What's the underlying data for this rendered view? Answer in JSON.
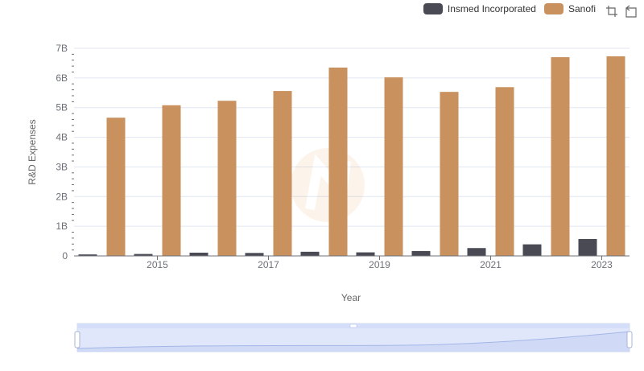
{
  "legend": {
    "items": [
      {
        "label": "Insmed Incorporated",
        "color": "#4a4a55"
      },
      {
        "label": "Sanofi",
        "color": "#c8915e"
      }
    ]
  },
  "toolbox": {
    "zoom_icon": "zoom-icon",
    "reset_icon": "restore-icon"
  },
  "chart_data": {
    "type": "bar",
    "xlabel": "Year",
    "ylabel": "R&D Expenses",
    "categories": [
      "2014",
      "2015",
      "2016",
      "2017",
      "2018",
      "2019",
      "2020",
      "2021",
      "2022",
      "2023"
    ],
    "x_tick_labels": [
      "2015",
      "2017",
      "2019",
      "2021",
      "2023"
    ],
    "y_ticks": [
      0,
      1000000000,
      2000000000,
      3000000000,
      4000000000,
      5000000000,
      6000000000,
      7000000000
    ],
    "y_tick_labels": [
      "0",
      "1B",
      "2B",
      "3B",
      "4B",
      "5B",
      "6B",
      "7B"
    ],
    "ylim": [
      0,
      7000000000
    ],
    "grid": true,
    "legend_position": "top-right",
    "series": [
      {
        "name": "Insmed Incorporated",
        "color": "#4a4a55",
        "values": [
          50000000,
          65000000,
          110000000,
          100000000,
          140000000,
          120000000,
          165000000,
          265000000,
          390000000,
          570000000
        ]
      },
      {
        "name": "Sanofi",
        "color": "#c8915e",
        "values": [
          4660000000,
          5080000000,
          5230000000,
          5560000000,
          6350000000,
          6020000000,
          5530000000,
          5690000000,
          6700000000,
          6730000000
        ]
      }
    ]
  }
}
